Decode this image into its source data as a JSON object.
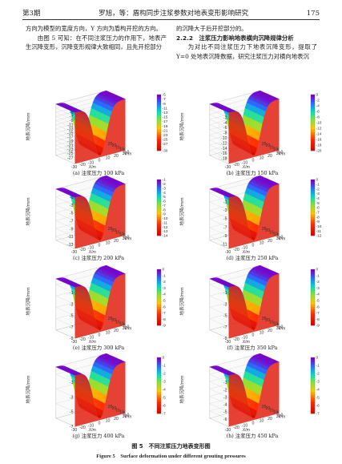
{
  "header": {
    "issue": "第3期",
    "title": "罗旭，等：盾构同步注浆参数对地表变形影响研究",
    "page_number": "175"
  },
  "left_column": {
    "p1": "方向为模型的宽度方向，Y 方向为盾构开挖的方向。",
    "p2": "由图 5 可知：在不同注浆压力的作用下，地表产生沉降变形，沉降变形规律大致相同，且先开挖部分"
  },
  "right_column": {
    "p1": "的沉降大于后开挖部分的。",
    "section": "2.2.2　注浆压力影响地表横向沉降规律分析",
    "p2": "为对比不同注浆压力下地表沉降变形，提取了 Y=0 处地表沉降数据，研究注浆压力对横向地表沉"
  },
  "axis_labels": {
    "z": "地表沉降/mm",
    "x": "X/m",
    "y": "Y/m"
  },
  "chart_data": [
    {
      "type": "surface3d",
      "caption": "(a) 注浆压力 100 kPa",
      "z_ticks": [
        -5,
        -7,
        -9,
        -11,
        -13,
        -15,
        -17,
        -19,
        -21,
        -23,
        -25,
        -27
      ],
      "colorbar_ticks": [
        -5,
        -7,
        -9,
        -11,
        -13,
        -15,
        -17,
        -19,
        -21,
        -23,
        -25,
        -27,
        -30
      ],
      "zlim": [
        -30,
        -5
      ],
      "x_ticks": [
        -30,
        -20,
        -10,
        0,
        10,
        20,
        30
      ],
      "y_ticks": [
        0,
        5,
        10,
        15,
        20,
        25
      ],
      "xlabel": "X/m",
      "ylabel": "Y/m",
      "zlabel": "地表沉降/mm"
    },
    {
      "type": "surface3d",
      "caption": "(b) 注浆压力 150 kPa",
      "z_ticks": [
        -2,
        -4,
        -6,
        -8,
        -10,
        -12,
        -14,
        -16,
        -18
      ],
      "colorbar_ticks": [
        0,
        -2,
        -4,
        -6,
        -8,
        -10,
        -12,
        -14,
        -16,
        -18,
        -20
      ],
      "zlim": [
        -20,
        0
      ],
      "x_ticks": [
        -30,
        -20,
        -10,
        0,
        10,
        20,
        30
      ],
      "y_ticks": [
        0,
        5,
        10,
        15,
        20,
        25
      ],
      "xlabel": "X/m",
      "ylabel": "Y/m",
      "zlabel": "地表沉降/mm"
    },
    {
      "type": "surface3d",
      "caption": "(c) 注浆压力 200 kPa",
      "z_ticks": [
        -1,
        -3,
        -5,
        -7,
        -9,
        -11,
        -13
      ],
      "colorbar_ticks": [
        -1,
        -2,
        -3,
        -4,
        -5,
        -6,
        -7,
        -8,
        -9,
        -10,
        -11,
        -12,
        -13,
        -14
      ],
      "zlim": [
        -14,
        -1
      ],
      "x_ticks": [
        -30,
        -20,
        -10,
        0,
        10,
        20,
        30
      ],
      "y_ticks": [
        0,
        5,
        10,
        15,
        20,
        25
      ],
      "xlabel": "X/m",
      "ylabel": "Y/m",
      "zlabel": "地表沉降/mm"
    },
    {
      "type": "surface3d",
      "caption": "(d) 注浆压力 250 kPa",
      "z_ticks": [
        -1,
        -3,
        -5,
        -7,
        -9,
        -11
      ],
      "colorbar_ticks": [
        0,
        -1,
        -2,
        -3,
        -4,
        -5,
        -6,
        -7,
        -8,
        -9,
        -10,
        -11,
        -12
      ],
      "zlim": [
        -12,
        0
      ],
      "x_ticks": [
        -30,
        -20,
        -10,
        0,
        10,
        20,
        30
      ],
      "y_ticks": [
        0,
        5,
        10,
        15,
        20,
        25
      ],
      "xlabel": "X/m",
      "ylabel": "Y/m",
      "zlabel": "地表沉降/mm"
    },
    {
      "type": "surface3d",
      "caption": "(e) 注浆压力 300 kPa",
      "z_ticks": [
        -1,
        -3,
        -5,
        -7,
        -9
      ],
      "colorbar_ticks": [
        0,
        -1,
        -2,
        -3,
        -4,
        -5,
        -6,
        -7,
        -8,
        -9
      ],
      "zlim": [
        -9,
        0
      ],
      "x_ticks": [
        -30,
        -20,
        -10,
        0,
        10,
        20,
        30
      ],
      "y_ticks": [
        0,
        5,
        10,
        15,
        20,
        25
      ],
      "xlabel": "X/m",
      "ylabel": "Y/m",
      "zlabel": "地表沉降/mm"
    },
    {
      "type": "surface3d",
      "caption": "(f) 注浆压力 350 kPa",
      "z_ticks": [
        -1,
        -3,
        -5,
        -7,
        -9
      ],
      "colorbar_ticks": [
        0,
        -1,
        -2,
        -3,
        -4,
        -5,
        -6,
        -7,
        -8,
        -9
      ],
      "zlim": [
        -9,
        0
      ],
      "x_ticks": [
        -30,
        -20,
        -10,
        0,
        10,
        20,
        30
      ],
      "y_ticks": [
        0,
        5,
        10,
        15,
        20,
        25
      ],
      "xlabel": "X/m",
      "ylabel": "Y/m",
      "zlabel": "地表沉降/mm"
    },
    {
      "type": "surface3d",
      "caption": "(g) 注浆压力 400 kPa",
      "z_ticks": [
        -1,
        -3,
        -5,
        -7
      ],
      "colorbar_ticks": [
        0,
        -1,
        -2,
        -3,
        -4,
        -5,
        -6,
        -7
      ],
      "zlim": [
        -7,
        0
      ],
      "x_ticks": [
        -30,
        -20,
        -10,
        0,
        10,
        20,
        30
      ],
      "y_ticks": [
        0,
        5,
        10,
        15,
        20,
        25
      ],
      "xlabel": "X/m",
      "ylabel": "Y/m",
      "zlabel": "地表沉降/mm"
    },
    {
      "type": "surface3d",
      "caption": "(h) 注浆压力 450 kPa",
      "z_ticks": [
        -1,
        -2,
        -3,
        -4,
        -5,
        -6
      ],
      "colorbar_ticks": [
        0,
        -1,
        -2,
        -3,
        -4,
        -5,
        -6,
        -7
      ],
      "zlim": [
        -7,
        0
      ],
      "x_ticks": [
        -30,
        -20,
        -10,
        0,
        10,
        20,
        30
      ],
      "y_ticks": [
        0,
        5,
        10,
        15,
        20,
        25
      ],
      "xlabel": "X/m",
      "ylabel": "Y/m",
      "zlabel": "地表沉降/mm"
    }
  ],
  "figure": {
    "caption_cn": "图 5　不同注浆压力地表变形图",
    "caption_en": "Figure 5　Surface deformation under different grouting pressures"
  }
}
